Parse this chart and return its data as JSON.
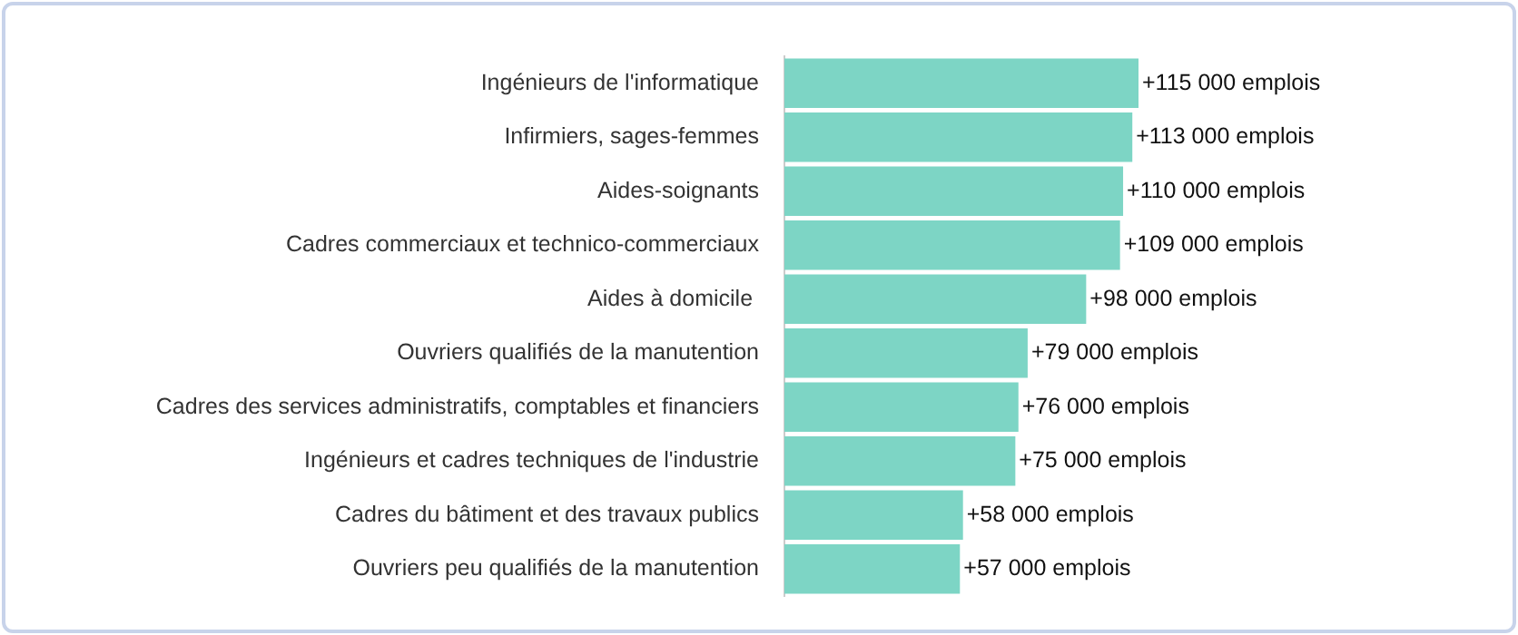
{
  "chart_data": {
    "type": "bar",
    "orientation": "horizontal",
    "categories": [
      "Ingénieurs de l'informatique",
      "Infirmiers, sages-femmes",
      "Aides-soignants",
      "Cadres commerciaux et technico-commerciaux",
      "Aides à domicile ",
      "Ouvriers qualifiés de la manutention",
      "Cadres des services administratifs, comptables et financiers",
      "Ingénieurs et cadres techniques de l'industrie",
      "Cadres du bâtiment et des travaux publics",
      "Ouvriers peu qualifiés de la manutention"
    ],
    "values": [
      115000,
      113000,
      110000,
      109000,
      98000,
      79000,
      76000,
      75000,
      58000,
      57000
    ],
    "value_labels": [
      "+115 000 emplois",
      "+113 000 emplois",
      "+110 000 emplois",
      "+109 000 emplois",
      "+98 000 emplois",
      "+79 000 emplois",
      "+76 000 emplois",
      "+75 000 emplois",
      "+58 000 emplois",
      "+57 000 emplois"
    ],
    "color": "#7dd5c5"
  }
}
